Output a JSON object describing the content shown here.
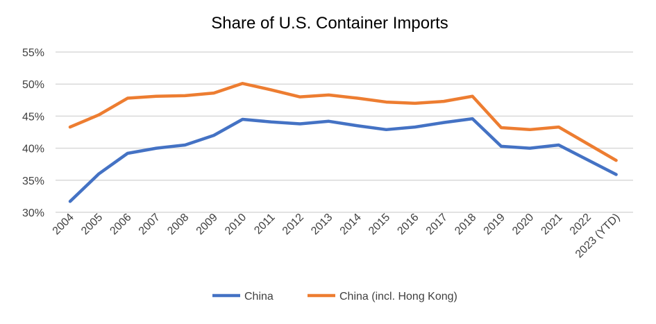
{
  "chart_data": {
    "type": "line",
    "title": "Share of U.S. Container Imports",
    "xlabel": "",
    "ylabel": "",
    "categories": [
      "2004",
      "2005",
      "2006",
      "2007",
      "2008",
      "2009",
      "2010",
      "2011",
      "2012",
      "2013",
      "2014",
      "2015",
      "2016",
      "2017",
      "2018",
      "2019",
      "2020",
      "2021",
      "2022",
      "2023 (YTD)"
    ],
    "ylim": [
      30,
      55
    ],
    "yticks": [
      "30%",
      "35%",
      "40%",
      "45%",
      "50%",
      "55%"
    ],
    "grid": true,
    "legend": "bottom",
    "series": [
      {
        "name": "China",
        "color": "#4472C4",
        "values": [
          31.7,
          36.0,
          39.2,
          40.0,
          40.5,
          42.0,
          44.5,
          44.1,
          43.8,
          44.2,
          43.5,
          42.9,
          43.3,
          44.0,
          44.6,
          40.3,
          40.0,
          40.5,
          38.2,
          35.9
        ]
      },
      {
        "name": "China (incl. Hong Kong)",
        "color": "#ED7D31",
        "values": [
          43.3,
          45.2,
          47.8,
          48.1,
          48.2,
          48.6,
          50.1,
          49.1,
          48.0,
          48.3,
          47.8,
          47.2,
          47.0,
          47.3,
          48.1,
          43.2,
          42.9,
          43.3,
          40.7,
          38.1
        ]
      }
    ]
  }
}
